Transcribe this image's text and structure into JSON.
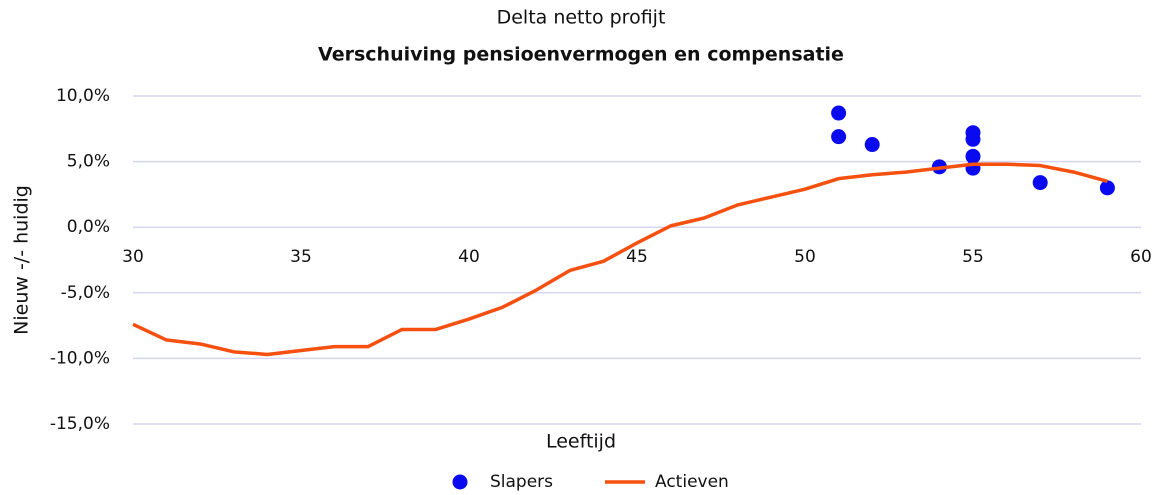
{
  "chart_data": {
    "type": "line",
    "title": "Delta netto profijt",
    "subtitle": "Verschuiving pensioenvermogen en compensatie",
    "x_label": "Leeftijd",
    "y_label": "Nieuw -/- huidig",
    "xlim": [
      30,
      60
    ],
    "xticks": [
      30,
      35,
      40,
      45,
      50,
      55,
      60
    ],
    "ylim": [
      -15,
      10
    ],
    "yticks": [
      {
        "value": -15,
        "label": "-15,0%"
      },
      {
        "value": -10,
        "label": "-10,0%"
      },
      {
        "value": -5,
        "label": "-5,0%"
      },
      {
        "value": 0,
        "label": "0,0%"
      },
      {
        "value": 5,
        "label": "5,0%"
      },
      {
        "value": 10,
        "label": "10,0%"
      }
    ],
    "grid": true,
    "legend": "bottom",
    "series": [
      {
        "name": "Slapers",
        "type": "scatter",
        "color": "#0a0af0",
        "x": [
          51,
          51,
          52,
          54,
          55,
          55,
          55,
          55,
          57,
          59
        ],
        "values": [
          8.7,
          6.9,
          6.3,
          4.6,
          7.2,
          6.7,
          5.4,
          4.5,
          3.4,
          3.0
        ]
      },
      {
        "name": "Actieven",
        "type": "line",
        "color": "#f5500f",
        "x": [
          30,
          31,
          32,
          33,
          34,
          35,
          36,
          37,
          38,
          39,
          40,
          41,
          42,
          43,
          44,
          45,
          46,
          47,
          48,
          49,
          50,
          51,
          52,
          53,
          54,
          55,
          56,
          57,
          58,
          59
        ],
        "values": [
          -7.4,
          -8.6,
          -8.9,
          -9.5,
          -9.7,
          -9.4,
          -9.1,
          -9.1,
          -7.8,
          -7.8,
          -7.0,
          -6.1,
          -4.8,
          -3.3,
          -2.6,
          -1.2,
          0.1,
          0.7,
          1.7,
          2.3,
          2.9,
          3.7,
          4.0,
          4.2,
          4.5,
          4.8,
          4.8,
          4.7,
          4.2,
          3.5
        ]
      }
    ]
  }
}
